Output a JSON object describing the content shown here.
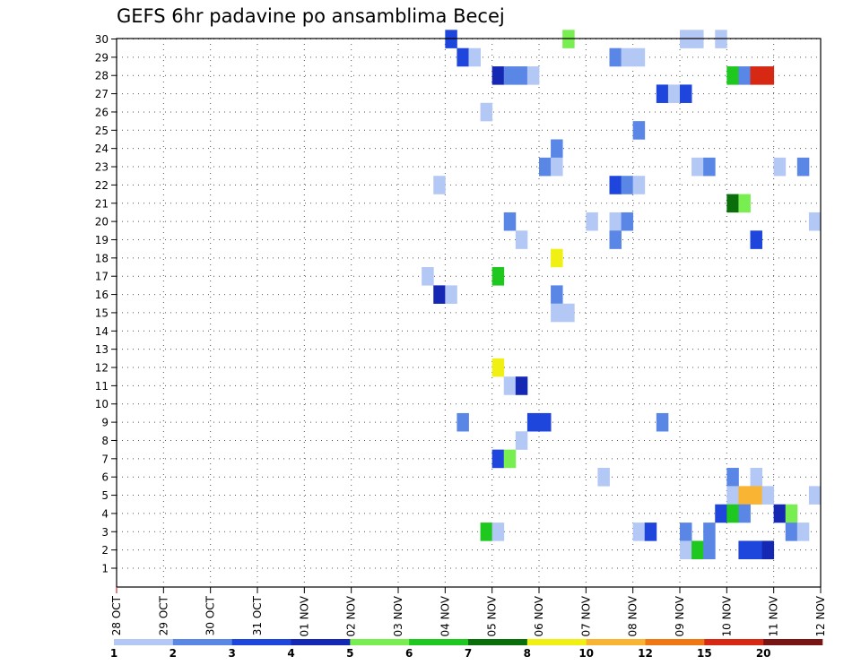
{
  "chart_data": {
    "type": "heatmap",
    "title": "GEFS 6hr padavine po ansamblima Becej",
    "x_tick_labels": [
      "28 OCT",
      "29 OCT",
      "30 OCT",
      "31 OCT",
      "01 NOV",
      "02 NOV",
      "03 NOV",
      "04 NOV",
      "05 NOV",
      "06 NOV",
      "07 NOV",
      "08 NOV",
      "09 NOV",
      "10 NOV",
      "11 NOV",
      "12 NOV"
    ],
    "y_tick_labels": [
      1,
      2,
      3,
      4,
      5,
      6,
      7,
      8,
      9,
      10,
      11,
      12,
      13,
      14,
      15,
      16,
      17,
      18,
      19,
      20,
      21,
      22,
      23,
      24,
      25,
      26,
      27,
      28,
      29,
      30
    ],
    "x_unit": "6-hour step from 28 OCT 00 UTC (4 steps per day)",
    "y_unit": "ensemble member",
    "legend": {
      "labels": [
        "1",
        "2",
        "3",
        "4",
        "5",
        "6",
        "7",
        "8",
        "10",
        "12",
        "15",
        "20"
      ],
      "colors": [
        "#b4c8f5",
        "#5a87e6",
        "#1e46dc",
        "#1428b4",
        "#78ee50",
        "#1ec81e",
        "#0a6e0a",
        "#f0f014",
        "#f8b432",
        "#f07814",
        "#d72814",
        "#781414"
      ]
    },
    "cells": [
      {
        "member": 30,
        "step": 28,
        "cls": 3
      },
      {
        "member": 30,
        "step": 38,
        "cls": 5
      },
      {
        "member": 30,
        "step": 48,
        "cls": 1
      },
      {
        "member": 30,
        "step": 49,
        "cls": 1
      },
      {
        "member": 30,
        "step": 51,
        "cls": 1
      },
      {
        "member": 29,
        "step": 29,
        "cls": 3
      },
      {
        "member": 29,
        "step": 30,
        "cls": 1
      },
      {
        "member": 29,
        "step": 42,
        "cls": 2
      },
      {
        "member": 29,
        "step": 43,
        "cls": 1
      },
      {
        "member": 29,
        "step": 44,
        "cls": 1
      },
      {
        "member": 28,
        "step": 32,
        "cls": 4
      },
      {
        "member": 28,
        "step": 33,
        "cls": 2
      },
      {
        "member": 28,
        "step": 34,
        "cls": 2
      },
      {
        "member": 28,
        "step": 35,
        "cls": 1
      },
      {
        "member": 28,
        "step": 52,
        "cls": 6
      },
      {
        "member": 28,
        "step": 53,
        "cls": 2
      },
      {
        "member": 28,
        "step": 54,
        "cls": 11
      },
      {
        "member": 28,
        "step": 55,
        "cls": 11
      },
      {
        "member": 27,
        "step": 46,
        "cls": 3
      },
      {
        "member": 27,
        "step": 47,
        "cls": 1
      },
      {
        "member": 27,
        "step": 48,
        "cls": 3
      },
      {
        "member": 26,
        "step": 31,
        "cls": 1
      },
      {
        "member": 25,
        "step": 44,
        "cls": 2
      },
      {
        "member": 24,
        "step": 37,
        "cls": 2
      },
      {
        "member": 23,
        "step": 36,
        "cls": 2
      },
      {
        "member": 23,
        "step": 37,
        "cls": 1
      },
      {
        "member": 23,
        "step": 49,
        "cls": 1
      },
      {
        "member": 23,
        "step": 50,
        "cls": 2
      },
      {
        "member": 23,
        "step": 56,
        "cls": 1
      },
      {
        "member": 23,
        "step": 58,
        "cls": 2
      },
      {
        "member": 22,
        "step": 27,
        "cls": 1
      },
      {
        "member": 22,
        "step": 42,
        "cls": 3
      },
      {
        "member": 22,
        "step": 43,
        "cls": 2
      },
      {
        "member": 22,
        "step": 44,
        "cls": 1
      },
      {
        "member": 21,
        "step": 52,
        "cls": 7
      },
      {
        "member": 21,
        "step": 53,
        "cls": 5
      },
      {
        "member": 20,
        "step": 33,
        "cls": 2
      },
      {
        "member": 20,
        "step": 40,
        "cls": 1
      },
      {
        "member": 20,
        "step": 42,
        "cls": 1
      },
      {
        "member": 20,
        "step": 43,
        "cls": 2
      },
      {
        "member": 20,
        "step": 59,
        "cls": 1
      },
      {
        "member": 19,
        "step": 34,
        "cls": 1
      },
      {
        "member": 19,
        "step": 42,
        "cls": 2
      },
      {
        "member": 19,
        "step": 54,
        "cls": 3
      },
      {
        "member": 18,
        "step": 37,
        "cls": 8
      },
      {
        "member": 17,
        "step": 26,
        "cls": 1
      },
      {
        "member": 17,
        "step": 32,
        "cls": 6
      },
      {
        "member": 16,
        "step": 27,
        "cls": 4
      },
      {
        "member": 16,
        "step": 28,
        "cls": 1
      },
      {
        "member": 16,
        "step": 37,
        "cls": 2
      },
      {
        "member": 15,
        "step": 37,
        "cls": 1
      },
      {
        "member": 15,
        "step": 38,
        "cls": 1
      },
      {
        "member": 12,
        "step": 32,
        "cls": 8
      },
      {
        "member": 11,
        "step": 33,
        "cls": 1
      },
      {
        "member": 11,
        "step": 34,
        "cls": 4
      },
      {
        "member": 9,
        "step": 29,
        "cls": 2
      },
      {
        "member": 9,
        "step": 35,
        "cls": 3
      },
      {
        "member": 9,
        "step": 36,
        "cls": 3
      },
      {
        "member": 9,
        "step": 46,
        "cls": 2
      },
      {
        "member": 8,
        "step": 34,
        "cls": 1
      },
      {
        "member": 7,
        "step": 32,
        "cls": 3
      },
      {
        "member": 7,
        "step": 33,
        "cls": 5
      },
      {
        "member": 6,
        "step": 41,
        "cls": 1
      },
      {
        "member": 6,
        "step": 52,
        "cls": 2
      },
      {
        "member": 6,
        "step": 54,
        "cls": 1
      },
      {
        "member": 5,
        "step": 52,
        "cls": 1
      },
      {
        "member": 5,
        "step": 53,
        "cls": 9
      },
      {
        "member": 5,
        "step": 54,
        "cls": 9
      },
      {
        "member": 5,
        "step": 55,
        "cls": 1
      },
      {
        "member": 5,
        "step": 59,
        "cls": 1
      },
      {
        "member": 4,
        "step": 51,
        "cls": 3
      },
      {
        "member": 4,
        "step": 52,
        "cls": 6
      },
      {
        "member": 4,
        "step": 53,
        "cls": 2
      },
      {
        "member": 4,
        "step": 56,
        "cls": 4
      },
      {
        "member": 4,
        "step": 57,
        "cls": 5
      },
      {
        "member": 3,
        "step": 31,
        "cls": 6
      },
      {
        "member": 3,
        "step": 32,
        "cls": 1
      },
      {
        "member": 3,
        "step": 44,
        "cls": 1
      },
      {
        "member": 3,
        "step": 45,
        "cls": 3
      },
      {
        "member": 3,
        "step": 48,
        "cls": 2
      },
      {
        "member": 3,
        "step": 50,
        "cls": 2
      },
      {
        "member": 3,
        "step": 57,
        "cls": 2
      },
      {
        "member": 3,
        "step": 58,
        "cls": 1
      },
      {
        "member": 2,
        "step": 48,
        "cls": 1
      },
      {
        "member": 2,
        "step": 49,
        "cls": 6
      },
      {
        "member": 2,
        "step": 50,
        "cls": 2
      },
      {
        "member": 2,
        "step": 53,
        "cls": 3
      },
      {
        "member": 2,
        "step": 54,
        "cls": 3
      },
      {
        "member": 2,
        "step": 55,
        "cls": 4
      }
    ]
  }
}
